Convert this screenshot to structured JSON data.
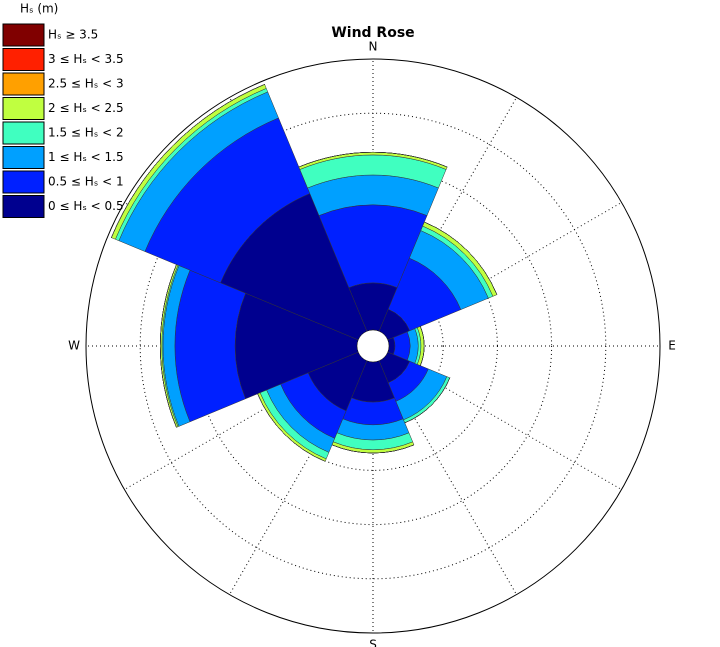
{
  "chart_data": {
    "type": "windrose",
    "title": "Wind Rose",
    "legend_title": "Hₛ (m)",
    "categories": [
      "N",
      null,
      "E",
      null,
      "S",
      null,
      "W",
      null
    ],
    "rlim": [
      0,
      5
    ],
    "rticks": [
      1,
      2,
      3,
      4,
      5
    ],
    "grid": true,
    "legend": "top-left",
    "series": [
      {
        "name": "0 ≤ Hₛ < 0.5",
        "color": "#00008f",
        "values": [
          0.87,
          0.44,
          0.11,
          0.44,
          0.74,
          1.0,
          2.25,
          2.75
        ]
      },
      {
        "name": "0.5 ≤ Hₛ < 1",
        "color": "#0020ff",
        "values": [
          1.44,
          1.02,
          0.28,
          0.37,
          0.42,
          0.55,
          1.11,
          1.51
        ]
      },
      {
        "name": "1 ≤ Hₛ < 1.5",
        "color": "#00a0ff",
        "values": [
          0.55,
          0.55,
          0.15,
          0.37,
          0.28,
          0.28,
          0.22,
          0.52
        ]
      },
      {
        "name": "1.5 ≤ Hₛ < 2",
        "color": "#40ffc0",
        "values": [
          0.37,
          0.09,
          0.05,
          0.06,
          0.18,
          0.13,
          0.02,
          0.07
        ]
      },
      {
        "name": "2 ≤ Hₛ < 2.5",
        "color": "#c0ff40",
        "values": [
          0.05,
          0.08,
          0.06,
          0,
          0.06,
          0.05,
          0.03,
          0.08
        ]
      },
      {
        "name": "2.5 ≤ Hₛ < 3",
        "color": "#ffa000",
        "values": [
          0,
          0,
          0,
          0,
          0,
          0,
          0,
          0
        ]
      },
      {
        "name": "3 ≤ Hₛ < 3.5",
        "color": "#ff2000",
        "values": [
          0,
          0,
          0,
          0,
          0,
          0,
          0,
          0
        ]
      },
      {
        "name": "Hₛ ≥ 3.5",
        "color": "#800000",
        "values": [
          0,
          0,
          0,
          0,
          0,
          0,
          0,
          0
        ]
      }
    ]
  }
}
